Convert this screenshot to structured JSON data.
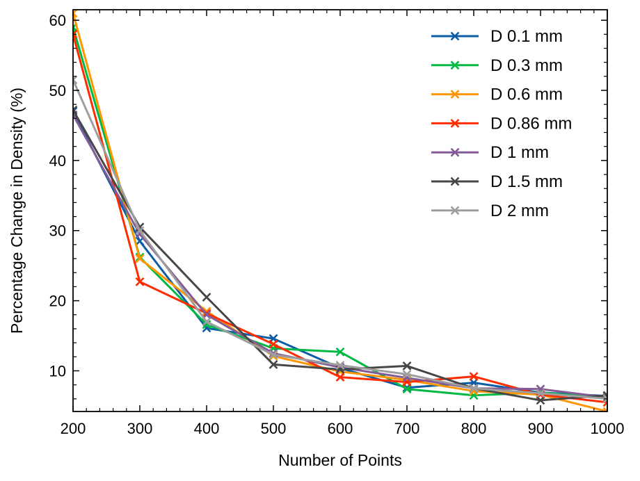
{
  "chart_data": {
    "type": "line",
    "title": "",
    "xlabel": "Number of Points",
    "ylabel": "Percentage Change in Density (%)",
    "xlim": [
      200,
      1000
    ],
    "ylim": [
      4.2,
      61.5
    ],
    "x_ticks": [
      200,
      300,
      400,
      500,
      600,
      700,
      800,
      900,
      1000
    ],
    "y_ticks": [
      10,
      20,
      30,
      40,
      50,
      60
    ],
    "grid": false,
    "legend_position": "top-right",
    "x": [
      200,
      300,
      400,
      500,
      600,
      700,
      800,
      900,
      1000
    ],
    "series": [
      {
        "name": "D 0.1 mm",
        "color": "#0c5da5",
        "marker": "x",
        "values": [
          47.0,
          28.5,
          16.1,
          14.6,
          10.4,
          7.6,
          8.3,
          6.9,
          6.4
        ]
      },
      {
        "name": "D 0.3 mm",
        "color": "#00b945",
        "marker": "x",
        "values": [
          59.0,
          26.2,
          16.6,
          13.2,
          12.7,
          7.4,
          6.5,
          6.9,
          6.1
        ]
      },
      {
        "name": "D 0.6 mm",
        "color": "#ff9500",
        "marker": "x",
        "values": [
          61.0,
          26.0,
          18.5,
          12.1,
          9.9,
          8.7,
          7.1,
          6.6,
          4.2
        ]
      },
      {
        "name": "D 0.86 mm",
        "color": "#ff2c00",
        "marker": "x",
        "values": [
          58.0,
          22.7,
          18.2,
          13.8,
          9.1,
          8.4,
          9.2,
          6.6,
          5.5
        ]
      },
      {
        "name": "D 1 mm",
        "color": "#845b97",
        "marker": "x",
        "values": [
          46.5,
          29.5,
          18.0,
          12.5,
          10.5,
          9.0,
          7.5,
          7.4,
          6.2
        ]
      },
      {
        "name": "D 1.5 mm",
        "color": "#474747",
        "marker": "x",
        "values": [
          47.2,
          30.5,
          20.5,
          10.9,
          10.2,
          10.7,
          7.5,
          5.8,
          6.5
        ]
      },
      {
        "name": "D 2 mm",
        "color": "#9e9e9e",
        "marker": "x",
        "values": [
          51.5,
          30.0,
          17.0,
          12.3,
          10.8,
          9.5,
          7.5,
          6.8,
          6.0
        ]
      }
    ]
  }
}
